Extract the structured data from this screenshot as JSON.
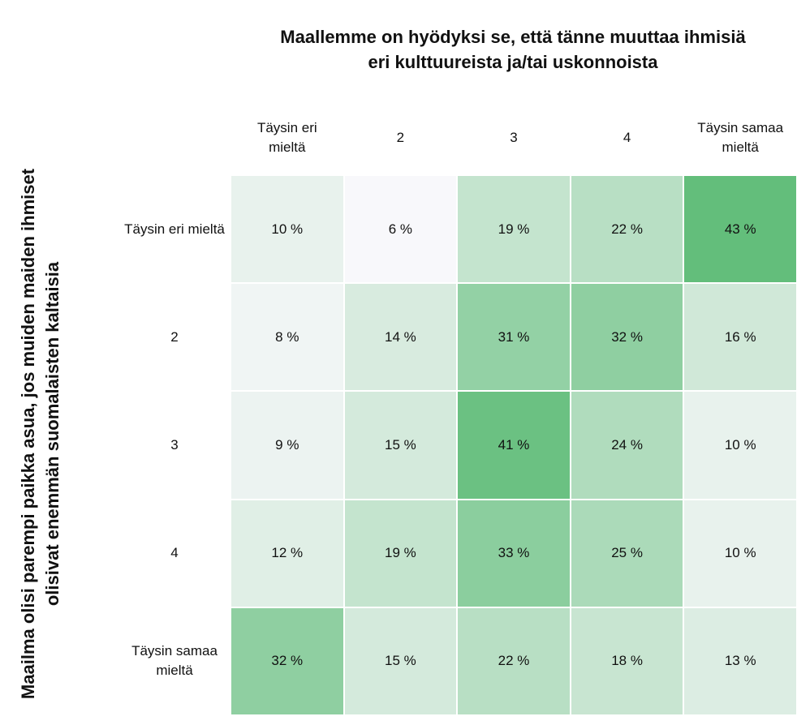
{
  "chart_data": {
    "type": "heatmap",
    "title": [
      "Maallemme on hyödyksi se, että tänne muuttaa ihmisiä",
      "eri kulttuureista ja/tai uskonnoista"
    ],
    "y_label": [
      "Maailma olisi parempi paikka asua, jos muiden maiden ihmiset",
      "olisivat enemmän suomalaisten kaltaisia"
    ],
    "x_categories": [
      "Täysin eri mieltä",
      "2",
      "3",
      "4",
      "Täysin samaa mieltä"
    ],
    "y_categories": [
      "Täysin eri mieltä",
      "2",
      "3",
      "4",
      "Täysin samaa mieltä"
    ],
    "values": [
      [
        10,
        6,
        19,
        22,
        43
      ],
      [
        8,
        14,
        31,
        32,
        16
      ],
      [
        9,
        15,
        41,
        24,
        10
      ],
      [
        12,
        19,
        33,
        25,
        10
      ],
      [
        32,
        15,
        22,
        18,
        13
      ]
    ],
    "value_labels": [
      [
        "10 %",
        "6 %",
        "19 %",
        "22 %",
        "43 %"
      ],
      [
        "8 %",
        "14 %",
        "31 %",
        "32 %",
        "16 %"
      ],
      [
        "9 %",
        "15 %",
        "41 %",
        "24 %",
        "10 %"
      ],
      [
        "12 %",
        "19 %",
        "33 %",
        "25 %",
        "10 %"
      ],
      [
        "32 %",
        "15 %",
        "22 %",
        "18 %",
        "13 %"
      ]
    ],
    "colorscale": [
      "#f8f8fb",
      "#63be7b"
    ]
  }
}
